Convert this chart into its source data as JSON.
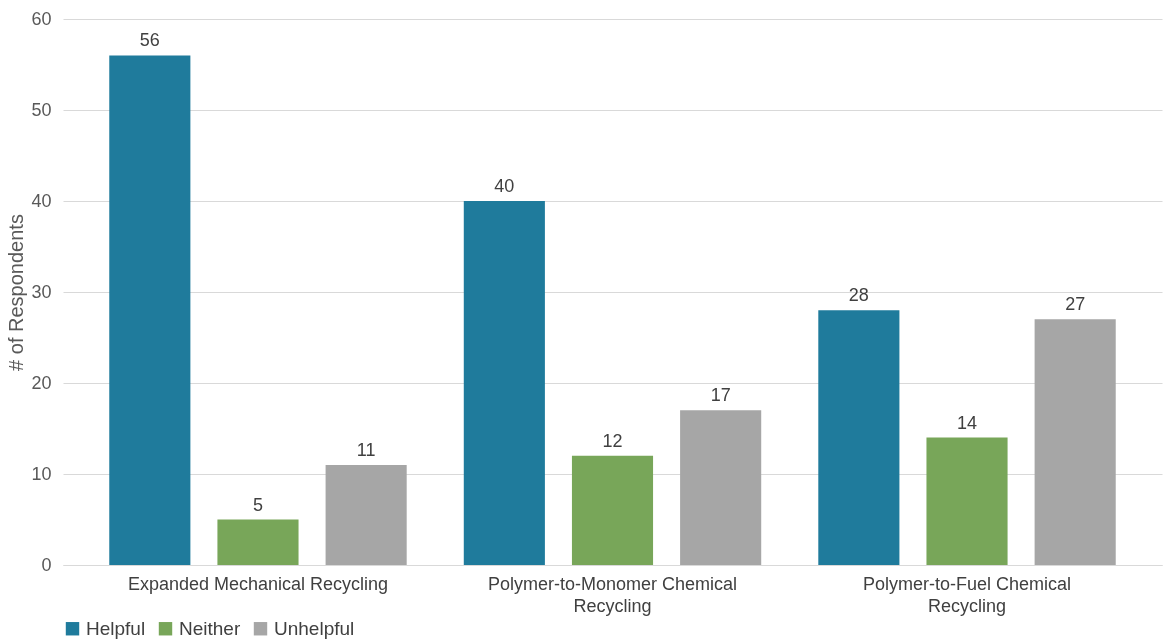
{
  "chart_data": {
    "type": "bar",
    "ylabel": "# of Respondents",
    "categories": [
      "Expanded Mechanical Recycling",
      "Polymer-to-Monomer Chemical Recycling",
      "Polymer-to-Fuel Chemical Recycling"
    ],
    "series": [
      {
        "name": "Helpful",
        "color": "#1f7b9c",
        "values": [
          56,
          40,
          28
        ]
      },
      {
        "name": "Neither",
        "color": "#78a659",
        "values": [
          5,
          12,
          14
        ]
      },
      {
        "name": "Unhelpful",
        "color": "#a6a6a6",
        "values": [
          11,
          17,
          27
        ]
      }
    ],
    "ylim": [
      0,
      60
    ],
    "yticks": [
      0,
      10,
      20,
      30,
      40,
      50,
      60
    ],
    "grid": "y",
    "legend": "bottom",
    "data_labels": true
  }
}
